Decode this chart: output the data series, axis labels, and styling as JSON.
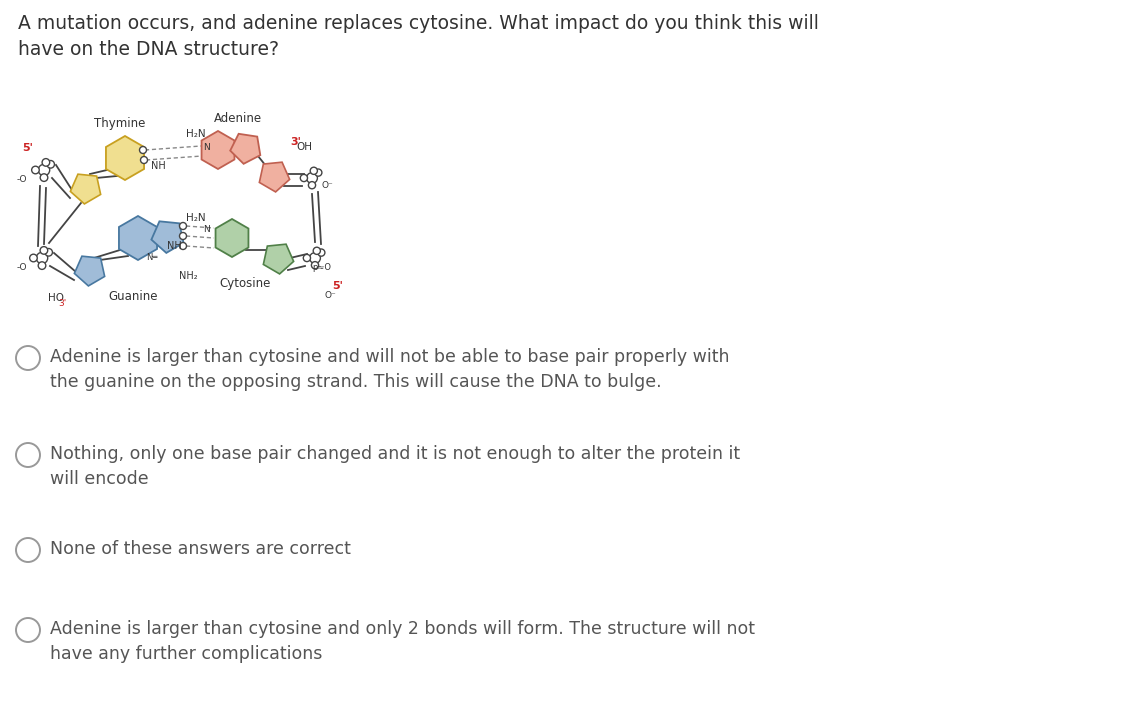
{
  "title_text": "A mutation occurs, and adenine replaces cytosine. What impact do you think this will\nhave on the DNA structure?",
  "title_fontsize": 13.5,
  "title_color": "#333333",
  "background_color": "#ffffff",
  "options": [
    {
      "label": "Adenine is larger than cytosine and will not be able to base pair properly with\nthe guanine on the opposing strand. This will cause the DNA to bulge.",
      "circle_filled": false
    },
    {
      "label": "Nothing, only one base pair changed and it is not enough to alter the protein it\nwill encode",
      "circle_filled": false
    },
    {
      "label": "None of these answers are correct",
      "circle_filled": false
    },
    {
      "label": "Adenine is larger than cytosine and only 2 bonds will form. The structure will not\nhave any further complications",
      "circle_filled": false
    }
  ],
  "option_fontsize": 12.5,
  "option_text_color": "#555555",
  "figsize": [
    11.21,
    7.28
  ],
  "dpi": 100,
  "thymine_color": "#f0df90",
  "thymine_edge": "#c8a020",
  "adenine_color": "#f0b0a0",
  "adenine_edge": "#c06050",
  "guanine_color": "#a0bcd8",
  "guanine_edge": "#4878a0",
  "cytosine_color": "#b0d0a8",
  "cytosine_edge": "#508048",
  "bond_color": "#444444",
  "hbond_color": "#888888",
  "label_color": "#333333",
  "red_label_color": "#cc2222"
}
